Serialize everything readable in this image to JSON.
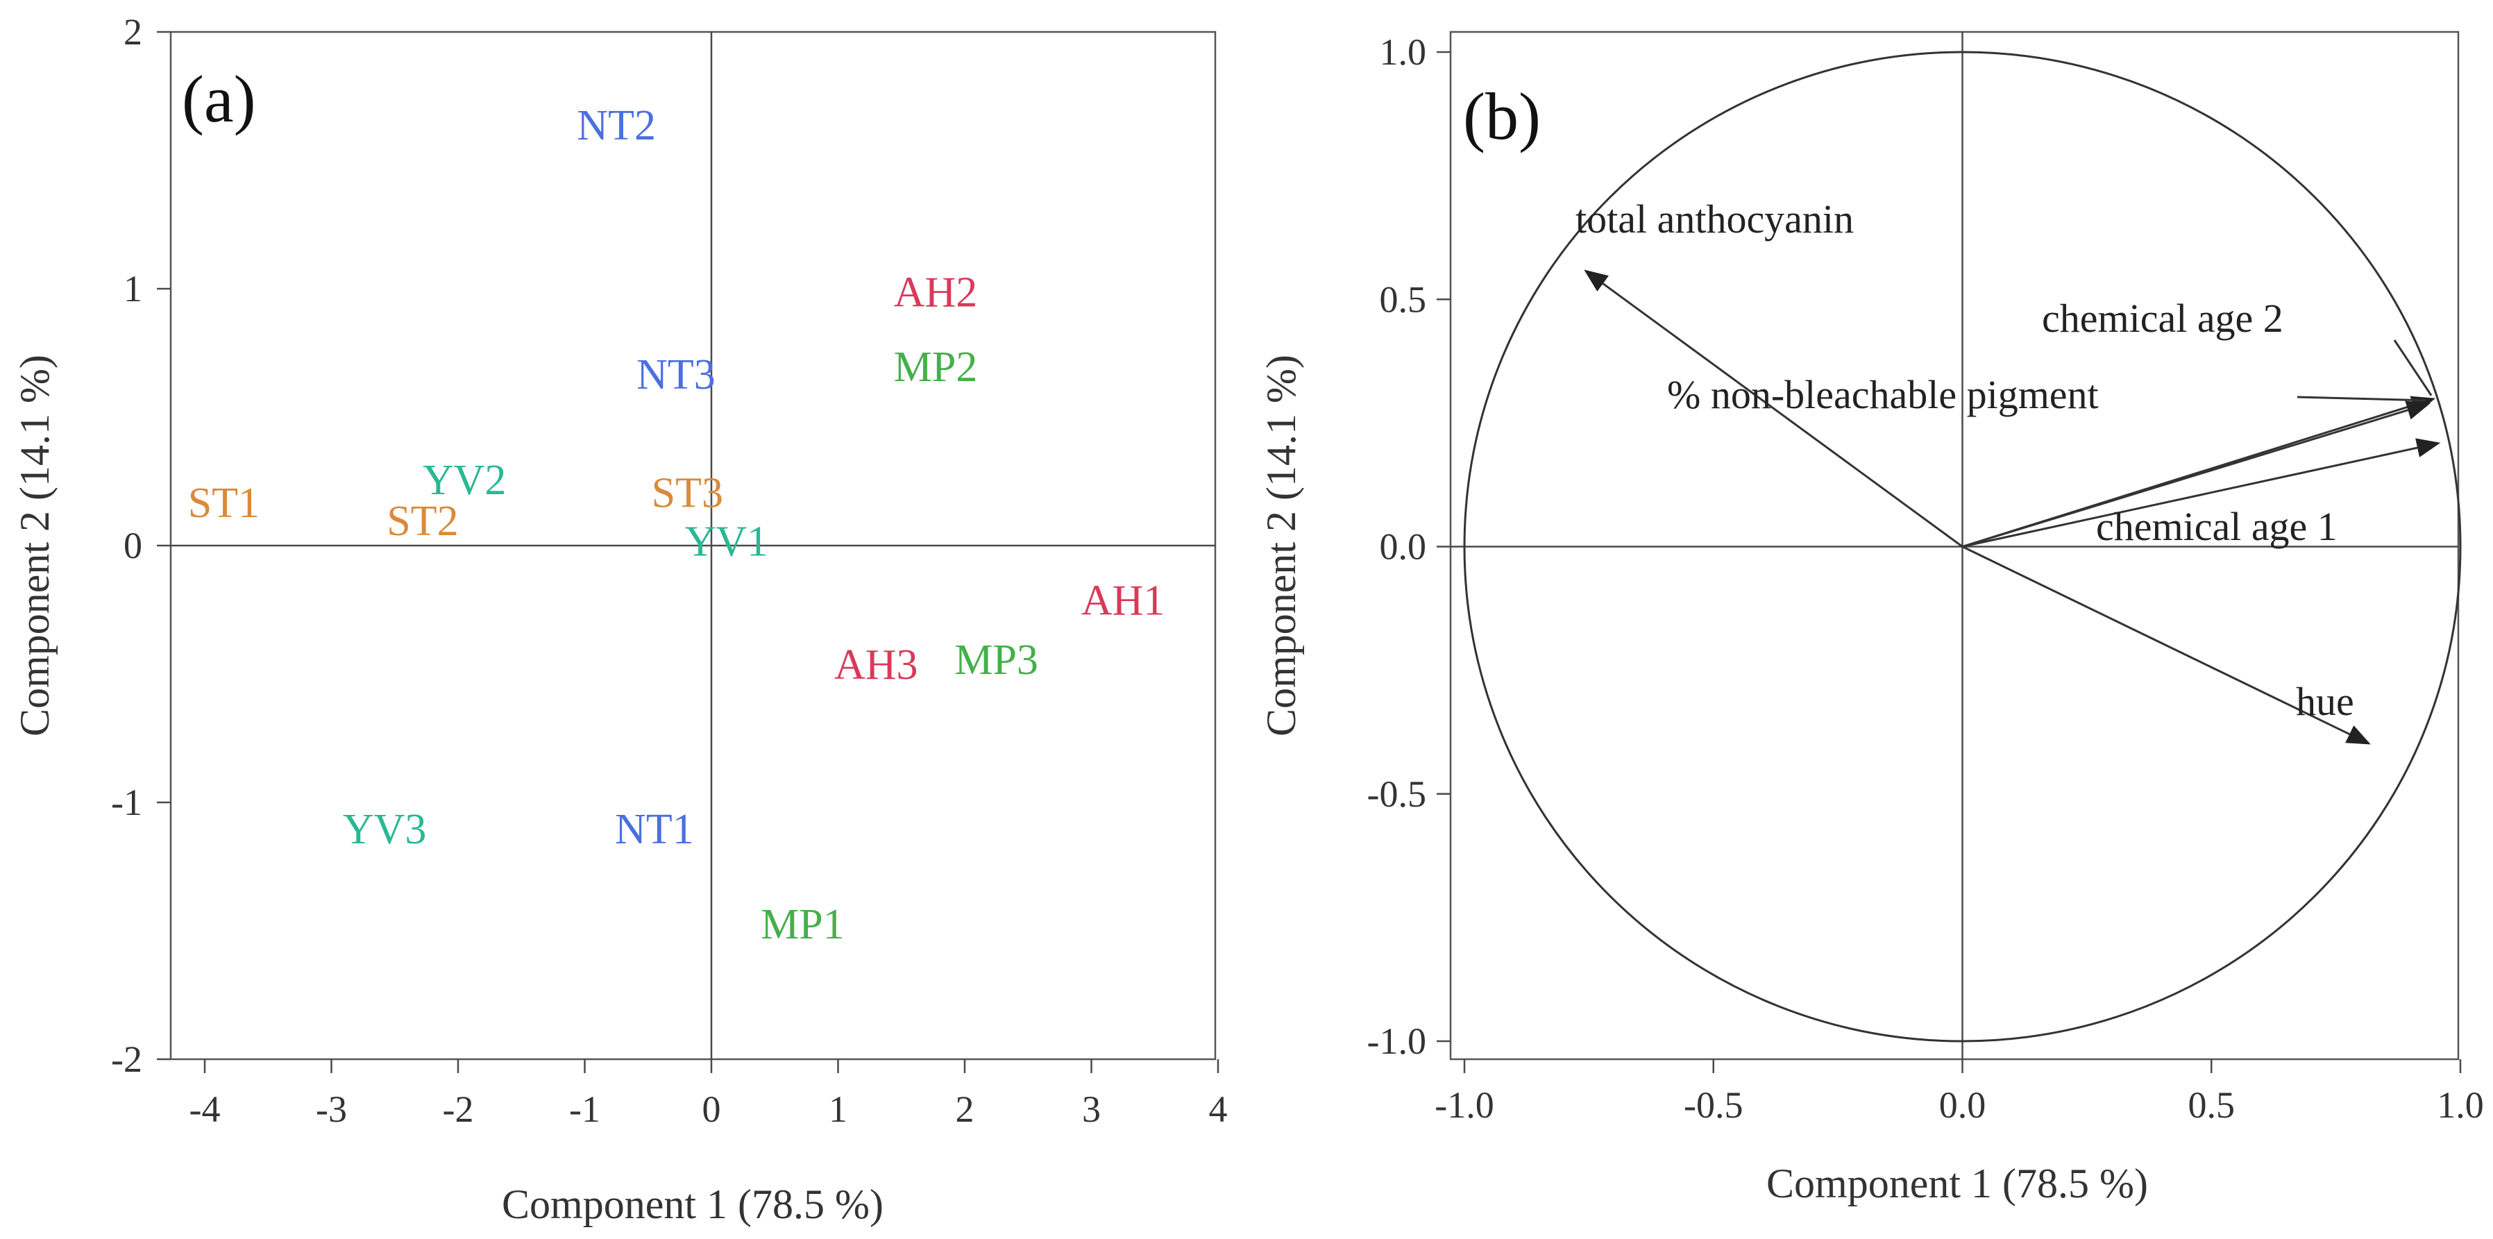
{
  "colors": {
    "AH": "#d83a5a",
    "MP": "#44b04a",
    "NT": "#4a6fe0",
    "ST": "#d98a3a",
    "YV": "#2ab894",
    "ink": "#222222"
  },
  "chart_data": [
    {
      "type": "scatter",
      "panel": "(a)",
      "title": "",
      "xlabel": "Component 1  (78.5 %)",
      "ylabel": "Component 2  (14.1 %)",
      "xlim": [
        -4.3,
        4
      ],
      "ylim": [
        -2,
        2
      ],
      "xticks": [
        -4,
        -3,
        -2,
        -1,
        0,
        1,
        2,
        3,
        4
      ],
      "xtick_labels": [
        "-4",
        "-3",
        "-2",
        "-1",
        "0",
        "1",
        "2",
        "3",
        "4"
      ],
      "yticks": [
        -2,
        -1,
        0,
        1,
        2
      ],
      "ytick_labels": [
        "-2",
        "-1",
        "0",
        "1",
        "2"
      ],
      "grid": false,
      "points": [
        {
          "label": "NT2",
          "group": "NT",
          "x": -0.75,
          "y": 1.64
        },
        {
          "label": "AH2",
          "group": "AH",
          "x": 1.77,
          "y": 0.99
        },
        {
          "label": "MP2",
          "group": "MP",
          "x": 1.77,
          "y": 0.7
        },
        {
          "label": "NT3",
          "group": "NT",
          "x": -0.28,
          "y": 0.67
        },
        {
          "label": "YV2",
          "group": "YV",
          "x": -1.95,
          "y": 0.26
        },
        {
          "label": "ST1",
          "group": "ST",
          "x": -3.85,
          "y": 0.17
        },
        {
          "label": "ST2",
          "group": "ST",
          "x": -2.28,
          "y": 0.1
        },
        {
          "label": "ST3",
          "group": "ST",
          "x": -0.19,
          "y": 0.21
        },
        {
          "label": "YV1",
          "group": "YV",
          "x": 0.12,
          "y": 0.02
        },
        {
          "label": "AH1",
          "group": "AH",
          "x": 3.25,
          "y": -0.21
        },
        {
          "label": "AH3",
          "group": "AH",
          "x": 1.3,
          "y": -0.46
        },
        {
          "label": "MP3",
          "group": "MP",
          "x": 2.25,
          "y": -0.44
        },
        {
          "label": "YV3",
          "group": "YV",
          "x": -2.58,
          "y": -1.1
        },
        {
          "label": "NT1",
          "group": "NT",
          "x": -0.45,
          "y": -1.1
        },
        {
          "label": "MP1",
          "group": "MP",
          "x": 0.72,
          "y": -1.47
        }
      ]
    },
    {
      "type": "biplot-loadings",
      "panel": "(b)",
      "title": "",
      "xlabel": "Component 1  (78.5 %)",
      "ylabel": "Component 2  (14.1 %)",
      "xlim": [
        -1.05,
        1.0
      ],
      "ylim": [
        -1.0,
        1.0
      ],
      "xticks": [
        -1.0,
        -0.5,
        0.0,
        0.5,
        1.0
      ],
      "xtick_labels": [
        "-1.0",
        "-0.5",
        "0.0",
        "0.5",
        "1.0"
      ],
      "yticks": [
        -1.0,
        -0.5,
        0.0,
        0.5,
        1.0
      ],
      "ytick_labels": [
        "-1.0",
        "-0.5",
        "0.0",
        "0.5",
        "1.0"
      ],
      "grid": false,
      "unit_circle": true,
      "vectors": [
        {
          "name": "total anthocyanin",
          "x": -0.76,
          "y": 0.56
        },
        {
          "name": "chemical age 2",
          "x": 0.95,
          "y": 0.3
        },
        {
          "name": "% non-bleachable pigment",
          "x": 0.94,
          "y": 0.29
        },
        {
          "name": "chemical age 1",
          "x": 0.96,
          "y": 0.21
        },
        {
          "name": "hue",
          "x": 0.82,
          "y": -0.4
        }
      ]
    }
  ]
}
